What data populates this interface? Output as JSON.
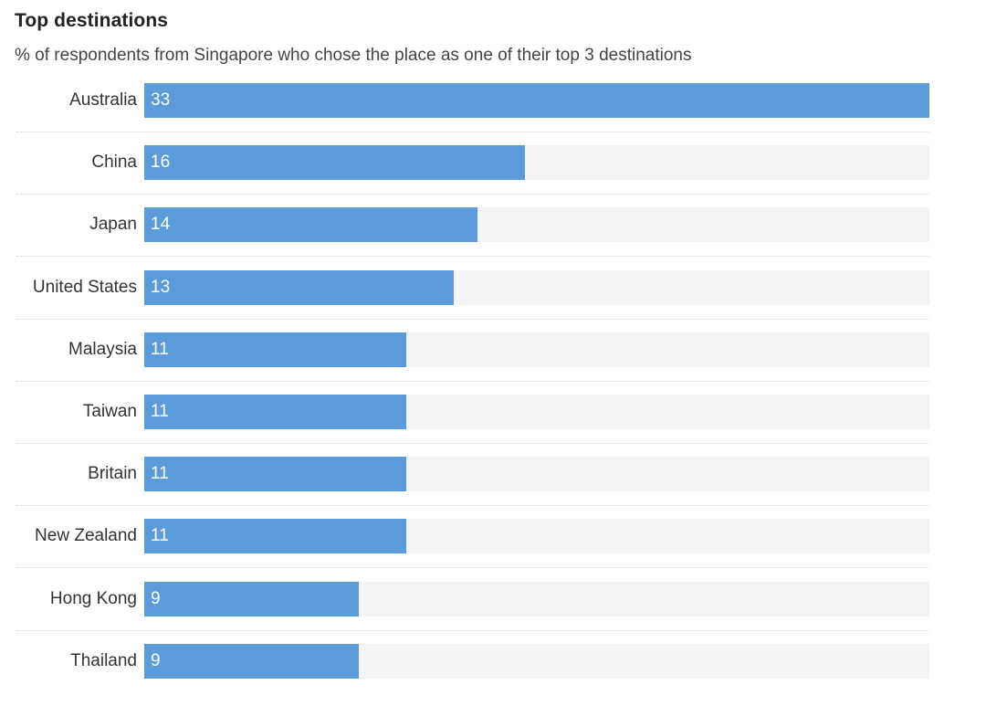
{
  "chart_data": {
    "type": "bar",
    "orientation": "horizontal",
    "title": "Top destinations",
    "subtitle": "% of respondents from Singapore who chose the place as one of their top 3 destinations",
    "categories": [
      "Australia",
      "China",
      "Japan",
      "United States",
      "Malaysia",
      "Taiwan",
      "Britain",
      "New Zealand",
      "Hong Kong",
      "Thailand"
    ],
    "values": [
      33,
      16,
      14,
      13,
      11,
      11,
      11,
      11,
      9,
      9
    ],
    "xlim": [
      0,
      33
    ],
    "grid": false,
    "legend": "none",
    "colors": {
      "bar": "#5b9bd9",
      "track": "#f4f4f6",
      "value_text": "#ffffff"
    }
  }
}
